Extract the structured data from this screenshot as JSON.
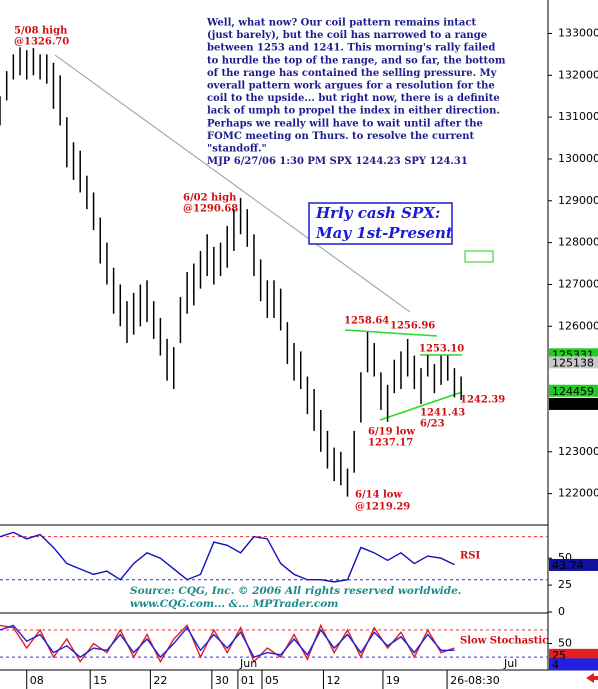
{
  "chart_data": [
    {
      "type": "ohlc",
      "color": "#000000",
      "x": [
        0,
        1,
        2,
        3,
        4,
        5,
        6,
        7,
        8,
        9,
        10,
        11,
        12,
        13,
        14,
        15,
        16,
        17,
        18,
        19,
        20,
        21,
        22,
        23,
        24,
        25,
        26,
        27,
        28,
        29,
        30,
        31,
        32,
        33,
        34,
        35,
        36,
        37,
        38,
        39,
        40,
        41,
        42,
        43,
        44,
        45,
        46,
        47,
        48,
        49,
        50,
        51,
        52,
        53,
        54,
        55,
        56,
        57,
        58,
        59,
        60,
        61,
        62,
        63,
        64,
        65,
        66,
        67,
        68,
        69
      ],
      "high": [
        131500,
        132100,
        132500,
        132670,
        132600,
        132650,
        132500,
        132500,
        132300,
        132000,
        131000,
        130400,
        130200,
        129600,
        129200,
        128600,
        128000,
        127400,
        127000,
        126600,
        126800,
        127000,
        127100,
        126600,
        126200,
        125700,
        125500,
        126700,
        127300,
        127500,
        127800,
        128200,
        127900,
        128000,
        128400,
        128800,
        129068,
        128800,
        128200,
        127600,
        127100,
        127100,
        126900,
        126100,
        125600,
        125400,
        124800,
        124500,
        124000,
        123500,
        123100,
        123000,
        122600,
        123500,
        124900,
        125864,
        125600,
        124900,
        124600,
        125200,
        125400,
        125696,
        125300,
        125000,
        125310,
        125100,
        125300,
        125300,
        125000,
        124800
      ],
      "low": [
        130800,
        131400,
        131900,
        132000,
        131900,
        132000,
        131900,
        131800,
        131200,
        130800,
        129800,
        129500,
        129200,
        128800,
        128300,
        127500,
        127000,
        126300,
        126000,
        125600,
        125800,
        126000,
        126100,
        125700,
        125300,
        124700,
        124500,
        125600,
        126300,
        126500,
        126900,
        127200,
        127000,
        127200,
        127400,
        127800,
        128200,
        127900,
        127200,
        126600,
        126200,
        126200,
        125900,
        125100,
        124700,
        124500,
        123900,
        123500,
        123000,
        122600,
        122300,
        122200,
        121929,
        122500,
        123700,
        124900,
        124800,
        124000,
        123717,
        124400,
        124500,
        124800,
        124500,
        124143,
        124800,
        124400,
        124600,
        124700,
        124300,
        124239
      ],
      "xlim": [
        0,
        82
      ],
      "ylim": [
        121250,
        133800
      ],
      "yticks": [
        133000,
        132000,
        131000,
        130000,
        129000,
        128000,
        127000,
        126000,
        123000,
        122000
      ],
      "xticks": [
        {
          "value": 4,
          "label": "08"
        },
        {
          "value": 13.5,
          "label": "15"
        },
        {
          "value": 22.5,
          "label": "22"
        },
        {
          "value": 31.7,
          "label": "30"
        },
        {
          "value": 35.6,
          "label": "01"
        },
        {
          "value": 39.2,
          "label": "05"
        },
        {
          "value": 48.4,
          "label": "12"
        },
        {
          "value": 57.3,
          "label": "19"
        },
        {
          "value": 66.9,
          "label": "26-08:30"
        }
      ],
      "month_labels": [
        "Jun",
        "Jul"
      ],
      "price_tags": [
        {
          "value": 125331,
          "color": "#22cc22"
        },
        {
          "value": 125138,
          "color": "#c8c8c8"
        },
        {
          "value": 124459,
          "color": "#22cc22"
        },
        {
          "value": 124144,
          "color": "#000000"
        }
      ],
      "commentary": [
        "Well, what now?  Our coil pattern remains intact",
        "(just barely), but the coil has narrowed to a range",
        "between 1253 and 1241. This morning's rally failed",
        "to hurdle the top of the range, and so far, the bottom",
        "of the range has contained the selling pressure. My",
        "overall pattern work argues for a resolution for the",
        "coil to the upside... but right now, there is a definite",
        "lack of umph to propel the index in either direction.",
        "Perhaps we really will have to wait until after the",
        "FOMC meeting on Thurs. to resolve the current",
        "\"standoff.\"",
        "MJP 6/27/06 1:30 PM SPX 1244.23   SPY 124.31"
      ],
      "title": [
        "Hrly cash SPX:",
        "May 1st-Present"
      ],
      "annotations": [
        "5/08 high",
        "@1326.70",
        "6/02 high",
        "@1290.68",
        "1258.64",
        "1256.96",
        "1253.10",
        "1241.43",
        "6/23",
        "1242.39",
        "6/19 low",
        "1237.17",
        "6/14  low",
        "@1219.29"
      ]
    },
    {
      "type": "line",
      "name": "RSI",
      "color": "#1010c0",
      "x": [
        0,
        2,
        4,
        6,
        8,
        10,
        12,
        14,
        16,
        18,
        20,
        22,
        24,
        26,
        28,
        30,
        32,
        34,
        36,
        38,
        40,
        42,
        44,
        46,
        48,
        50,
        52,
        54,
        56,
        58,
        60,
        62,
        64,
        66,
        68
      ],
      "values": [
        70,
        74,
        68,
        72,
        60,
        45,
        40,
        35,
        38,
        30,
        45,
        55,
        50,
        40,
        30,
        35,
        65,
        62,
        55,
        70,
        68,
        45,
        35,
        30,
        30,
        28,
        30,
        60,
        55,
        48,
        55,
        45,
        52,
        50,
        44
      ],
      "ylim": [
        0,
        79
      ],
      "yticks": [
        50,
        25,
        0
      ],
      "levels": [
        {
          "value": 70,
          "color": "#e03030"
        },
        {
          "value": 30,
          "color": "#3030e0"
        }
      ],
      "price_tags": [
        {
          "value": 43.74,
          "color": "#1010a0"
        }
      ],
      "source": [
        "Source: CQG, Inc. © 2006 All rights reserved worldwide.",
        "www.CQG.com... &... MPTrader.com"
      ]
    },
    {
      "type": "line",
      "name": "Slow Stochastic",
      "x": [
        0,
        2,
        4,
        6,
        8,
        10,
        12,
        14,
        16,
        18,
        20,
        22,
        24,
        26,
        28,
        30,
        32,
        34,
        36,
        38,
        40,
        42,
        44,
        46,
        48,
        50,
        52,
        54,
        56,
        58,
        60,
        62,
        64,
        66,
        68
      ],
      "series": [
        {
          "color": "#e02020",
          "values": [
            90,
            85,
            40,
            80,
            20,
            60,
            10,
            50,
            30,
            80,
            20,
            70,
            10,
            60,
            90,
            20,
            80,
            30,
            85,
            10,
            40,
            20,
            70,
            15,
            90,
            30,
            80,
            20,
            85,
            40,
            75,
            20,
            80,
            30,
            40
          ]
        },
        {
          "color": "#2020e0",
          "values": [
            80,
            90,
            55,
            70,
            30,
            45,
            20,
            40,
            35,
            70,
            30,
            60,
            20,
            50,
            85,
            35,
            70,
            40,
            75,
            20,
            30,
            25,
            60,
            25,
            80,
            40,
            70,
            30,
            75,
            45,
            65,
            30,
            70,
            35,
            35
          ]
        }
      ],
      "ylim": [
        -4,
        113
      ],
      "yticks": [
        50
      ],
      "levels": [
        {
          "value": 80,
          "color": "#e03030"
        },
        {
          "value": 20,
          "color": "#3030e0"
        }
      ],
      "price_tags": [
        {
          "value": 25,
          "color": "#e02020"
        },
        {
          "value": 4,
          "color": "#2020e0"
        }
      ]
    }
  ]
}
